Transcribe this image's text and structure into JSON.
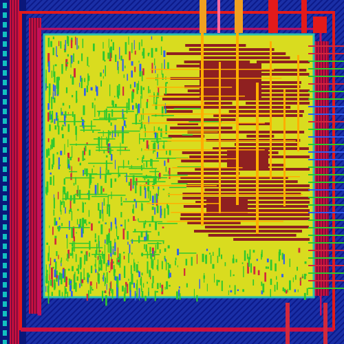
{
  "view": {
    "background": "#000000",
    "die_fill": "#d9dc1f",
    "pad_ring_fill": "#1a2fa6",
    "pad_stripe": "#0a177a",
    "power_ring": "#e31a1a",
    "io_strip": "#cc1040",
    "io_dash": "#12c0c0",
    "core_edge": "#2bc0b0",
    "congested_fill": "#8f2020",
    "route_orange": "#ffae00",
    "route_green": "#2ec82e",
    "route_blue": "#2f5ff0",
    "route_red": "#d2283c"
  }
}
